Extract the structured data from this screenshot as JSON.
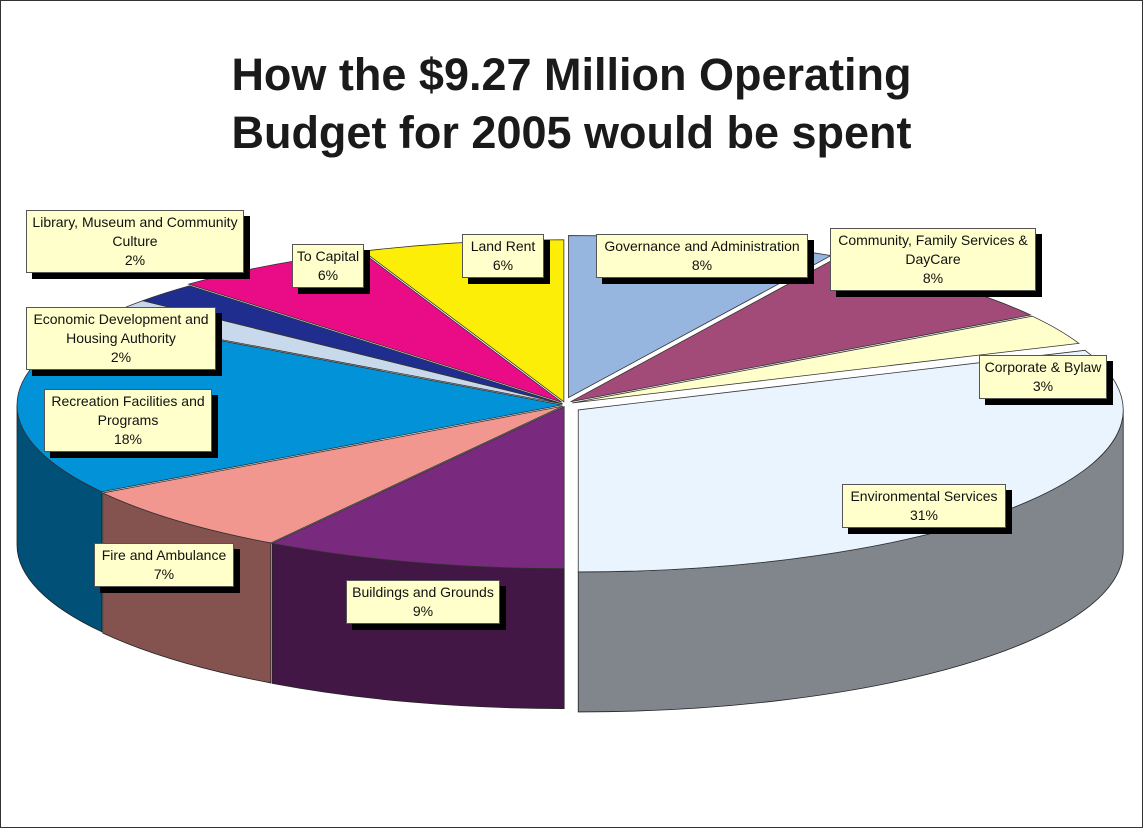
{
  "chart_data": {
    "type": "pie",
    "title_line1": "How the $9.27 Million Operating",
    "title_line2": "Budget for 2005 would be spent",
    "slices": [
      {
        "key": "gov",
        "name_lines": [
          "Governance and Administration"
        ],
        "pct_label": "8%",
        "value": 8,
        "color": "#96b6e0"
      },
      {
        "key": "cfs",
        "name_lines": [
          "Community, Family Services &",
          "DayCare"
        ],
        "pct_label": "8%",
        "value": 8,
        "color": "#a24b78"
      },
      {
        "key": "corp",
        "name_lines": [
          "Corporate & Bylaw"
        ],
        "pct_label": "3%",
        "value": 3,
        "color": "#ffffcc"
      },
      {
        "key": "env",
        "name_lines": [
          "Environmental Services"
        ],
        "pct_label": "31%",
        "value": 31,
        "color": "#eaf4ff"
      },
      {
        "key": "bld",
        "name_lines": [
          "Buildings and Grounds"
        ],
        "pct_label": "9%",
        "value": 9,
        "color": "#7a2a7e"
      },
      {
        "key": "fire",
        "name_lines": [
          "Fire and Ambulance"
        ],
        "pct_label": "7%",
        "value": 7,
        "color": "#f2978f"
      },
      {
        "key": "rec",
        "name_lines": [
          "Recreation Facilities and",
          "Programs"
        ],
        "pct_label": "18%",
        "value": 18,
        "color": "#0292d8"
      },
      {
        "key": "econ",
        "name_lines": [
          "Economic Development and",
          "Housing Authority"
        ],
        "pct_label": "2%",
        "value": 2,
        "color": "#c9d9ec"
      },
      {
        "key": "lib",
        "name_lines": [
          "Library, Museum and Community",
          "Culture"
        ],
        "pct_label": "2%",
        "value": 2,
        "color": "#1f2d8f"
      },
      {
        "key": "cap",
        "name_lines": [
          "To Capital"
        ],
        "pct_label": "6%",
        "value": 6,
        "color": "#ea0c87"
      },
      {
        "key": "land",
        "name_lines": [
          "Land Rent"
        ],
        "pct_label": "6%",
        "value": 6,
        "color": "#fcee06"
      }
    ]
  }
}
